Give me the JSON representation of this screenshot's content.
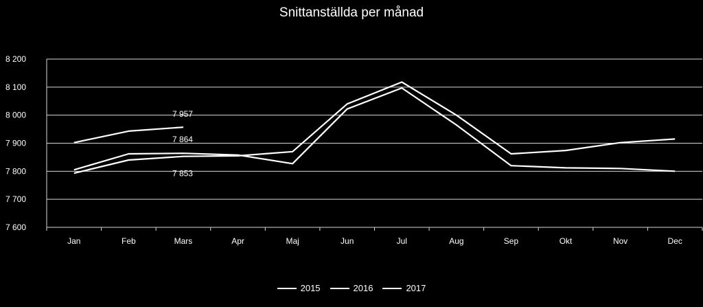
{
  "chart_data": {
    "type": "line",
    "title": "Snittanställda per månad",
    "xlabel": "",
    "ylabel": "",
    "categories": [
      "Jan",
      "Feb",
      "Mars",
      "Apr",
      "Maj",
      "Jun",
      "Jul",
      "Aug",
      "Sep",
      "Okt",
      "Nov",
      "Dec"
    ],
    "ylim": [
      7600,
      8200
    ],
    "yticks": [
      7600,
      7700,
      7800,
      7900,
      8000,
      8100,
      8200
    ],
    "ytick_labels": [
      "7 600",
      "7 700",
      "7 800",
      "7 900",
      "8 000",
      "8 100",
      "8 200"
    ],
    "grid": true,
    "legend_position": "bottom",
    "series": [
      {
        "name": "2015",
        "values": [
          7793,
          7840,
          7853,
          7855,
          7870,
          8040,
          8118,
          8000,
          7862,
          7874,
          7902,
          7915
        ]
      },
      {
        "name": "2016",
        "values": [
          7805,
          7862,
          7864,
          7858,
          7827,
          8022,
          8097,
          7965,
          7820,
          7812,
          7810,
          7800
        ]
      },
      {
        "name": "2017",
        "values": [
          7902,
          7943,
          7957,
          null,
          null,
          null,
          null,
          null,
          null,
          null,
          null,
          null
        ]
      }
    ],
    "annotations": [
      {
        "category": "Mars",
        "value": 7957,
        "label": "7 957"
      },
      {
        "category": "Mars",
        "value": 7864,
        "label": "7 864"
      },
      {
        "category": "Mars",
        "value": 7853,
        "label": "7 853"
      }
    ],
    "colors": {
      "background": "#000000",
      "line": "#ffffff",
      "grid": "#d9d9d9",
      "text": "#ffffff"
    }
  }
}
